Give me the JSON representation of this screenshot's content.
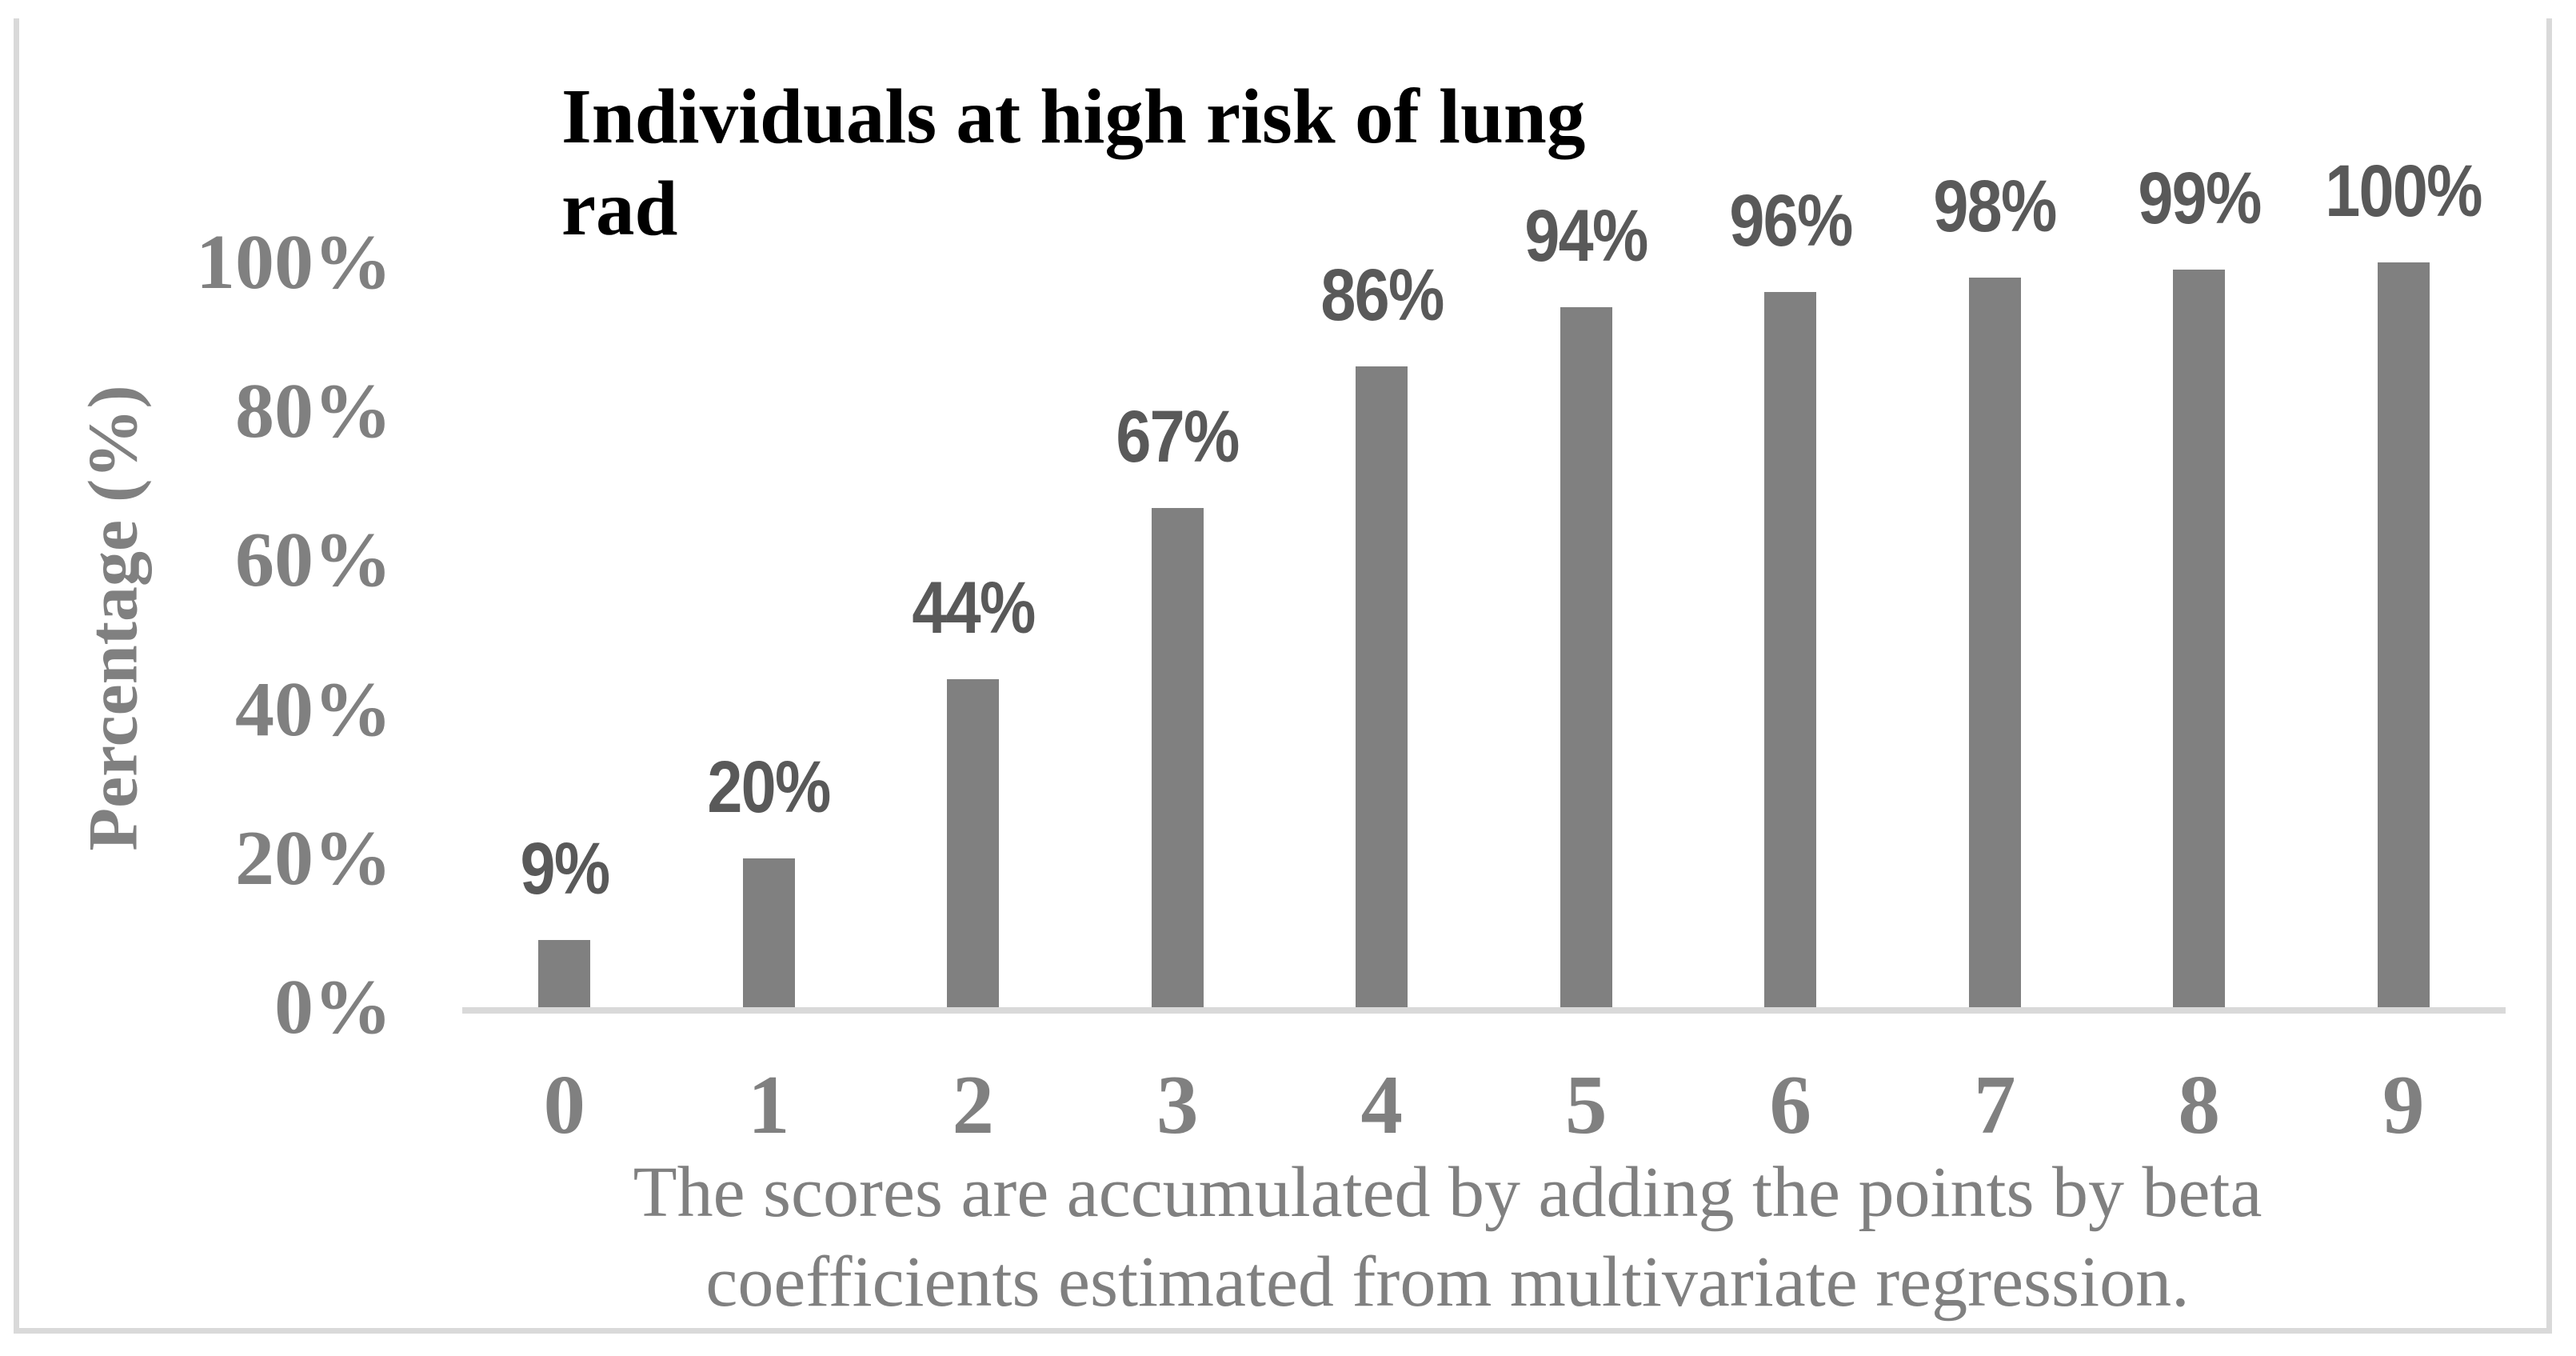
{
  "chart_data": {
    "type": "bar",
    "title": "Individuals at high risk of lung rad",
    "title_lines": [
      "Individuals at high risk of lung",
      "rad"
    ],
    "categories": [
      "0",
      "1",
      "2",
      "3",
      "4",
      "5",
      "6",
      "7",
      "8",
      "9"
    ],
    "values": [
      9,
      20,
      44,
      67,
      86,
      94,
      96,
      98,
      99,
      100
    ],
    "bar_labels": [
      "9%",
      "20%",
      "44%",
      "67%",
      "86%",
      "94%",
      "96%",
      "98%",
      "99%",
      "100%"
    ],
    "ylabel": "Percentage (%)",
    "yticks": [
      "0%",
      "20%",
      "40%",
      "60%",
      "80%",
      "100%"
    ],
    "ylim": [
      0,
      100
    ],
    "xlabel_lines": [
      "The scores are accumulated by adding the points by beta",
      "coefficients estimated from multivariate regression."
    ],
    "grid": "off",
    "legend": "none",
    "colors": {
      "bar": "#808080",
      "data_label": "#595959",
      "axis_text": "#808080",
      "axis_line": "#d9d9d9",
      "border": "#d9d9d9",
      "title": "#000000"
    }
  }
}
